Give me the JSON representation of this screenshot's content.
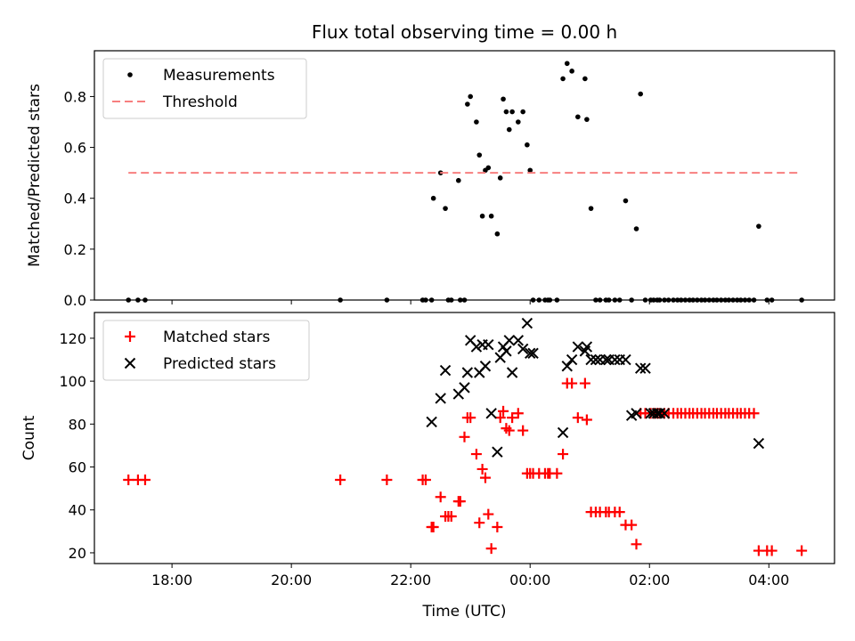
{
  "chart_data": [
    {
      "type": "scatter",
      "title": "Flux total observing time = 0.00 h",
      "xlabel": "",
      "ylabel": "Matched/Predicted stars",
      "ylim": [
        0,
        0.98
      ],
      "yticks": [
        "0.0",
        "0.2",
        "0.4",
        "0.6",
        "0.8"
      ],
      "xlim": [
        16.7,
        29.1
      ],
      "legend_placement": "top-left",
      "series": [
        {
          "name": "Measurements",
          "color": "#000000",
          "marker": "dot",
          "x": [
            17.27,
            17.43,
            17.55,
            20.82,
            21.6,
            22.2,
            22.25,
            22.35,
            22.38,
            22.5,
            22.58,
            22.63,
            22.68,
            22.8,
            22.83,
            22.9,
            22.95,
            23.0,
            23.1,
            23.15,
            23.2,
            23.25,
            23.3,
            23.35,
            23.45,
            23.5,
            23.55,
            23.6,
            23.65,
            23.7,
            23.8,
            23.88,
            23.95,
            24.0,
            24.05,
            24.15,
            24.25,
            24.3,
            24.33,
            24.45,
            24.55,
            24.62,
            24.7,
            24.8,
            24.92,
            24.95,
            25.02,
            25.1,
            25.17,
            25.27,
            25.32,
            25.42,
            25.5,
            25.6,
            25.7,
            25.78,
            25.85,
            25.93,
            26.02,
            26.07,
            26.13,
            26.17,
            26.25,
            26.32,
            26.4,
            26.47,
            26.53,
            26.6,
            26.67,
            26.73,
            26.8,
            26.87,
            26.93,
            27.0,
            27.07,
            27.13,
            27.2,
            27.27,
            27.33,
            27.4,
            27.47,
            27.53,
            27.6,
            27.67,
            27.75,
            27.83,
            27.97,
            28.05,
            28.55
          ],
          "y": [
            0.0,
            0.0,
            0.0,
            0.0,
            0.0,
            0.0,
            0.0,
            0.0,
            0.4,
            0.5,
            0.36,
            0.0,
            0.0,
            0.47,
            0.0,
            0.0,
            0.77,
            0.8,
            0.7,
            0.57,
            0.33,
            0.51,
            0.52,
            0.33,
            0.26,
            0.48,
            0.79,
            0.74,
            0.67,
            0.74,
            0.7,
            0.74,
            0.61,
            0.51,
            0.0,
            0.0,
            0.0,
            0.0,
            0.0,
            0.0,
            0.87,
            0.93,
            0.9,
            0.72,
            0.87,
            0.71,
            0.36,
            0.0,
            0.0,
            0.0,
            0.0,
            0.0,
            0.0,
            0.39,
            0.0,
            0.28,
            0.81,
            0.0,
            0.0,
            0.0,
            0.0,
            0.0,
            0.0,
            0.0,
            0.0,
            0.0,
            0.0,
            0.0,
            0.0,
            0.0,
            0.0,
            0.0,
            0.0,
            0.0,
            0.0,
            0.0,
            0.0,
            0.0,
            0.0,
            0.0,
            0.0,
            0.0,
            0.0,
            0.0,
            0.0,
            0.29,
            0.0,
            0.0,
            0.0
          ]
        },
        {
          "name": "Threshold",
          "color": "#f77f7f",
          "style": "dashed",
          "x": [
            17.27,
            28.55
          ],
          "y": [
            0.5,
            0.5
          ]
        }
      ]
    },
    {
      "type": "scatter",
      "title": "",
      "xlabel": "Time (UTC)",
      "ylabel": "Count",
      "ylim": [
        15,
        132
      ],
      "yticks": [
        "20",
        "40",
        "60",
        "80",
        "100",
        "120"
      ],
      "xlim": [
        16.7,
        29.1
      ],
      "xticks": [
        {
          "value": 18,
          "label": "18:00"
        },
        {
          "value": 20,
          "label": "20:00"
        },
        {
          "value": 22,
          "label": "22:00"
        },
        {
          "value": 24,
          "label": "00:00"
        },
        {
          "value": 26,
          "label": "02:00"
        },
        {
          "value": 28,
          "label": "04:00"
        }
      ],
      "legend_placement": "top-left",
      "series": [
        {
          "name": "Matched stars",
          "color": "#ff0000",
          "marker": "plus",
          "x": [
            17.27,
            17.43,
            17.55,
            20.82,
            21.6,
            22.2,
            22.25,
            22.35,
            22.38,
            22.5,
            22.58,
            22.63,
            22.68,
            22.8,
            22.83,
            22.9,
            22.95,
            23.0,
            23.1,
            23.15,
            23.2,
            23.25,
            23.3,
            23.35,
            23.45,
            23.5,
            23.55,
            23.6,
            23.65,
            23.7,
            23.8,
            23.88,
            23.95,
            24.0,
            24.05,
            24.15,
            24.25,
            24.3,
            24.33,
            24.45,
            24.55,
            24.62,
            24.7,
            24.8,
            24.92,
            24.95,
            25.02,
            25.1,
            25.17,
            25.27,
            25.32,
            25.42,
            25.5,
            25.6,
            25.7,
            25.78,
            25.85,
            25.93,
            26.02,
            26.07,
            26.13,
            26.17,
            26.25,
            26.32,
            26.4,
            26.47,
            26.53,
            26.6,
            26.67,
            26.73,
            26.8,
            26.87,
            26.93,
            27.0,
            27.07,
            27.13,
            27.2,
            27.27,
            27.33,
            27.4,
            27.47,
            27.53,
            27.6,
            27.67,
            27.75,
            27.83,
            27.97,
            28.05,
            28.55
          ],
          "y": [
            54,
            54,
            54,
            54,
            54,
            54,
            54,
            32,
            32,
            46,
            37,
            37,
            37,
            44,
            44,
            74,
            83,
            83,
            66,
            34,
            59,
            55,
            38,
            22,
            32,
            83,
            86,
            78,
            77,
            83,
            85,
            77,
            57,
            57,
            57,
            57,
            57,
            57,
            57,
            57,
            66,
            99,
            99,
            83,
            99,
            82,
            39,
            39,
            39,
            39,
            39,
            39,
            39,
            33,
            33,
            24,
            85,
            85,
            85,
            85,
            85,
            85,
            85,
            85,
            85,
            85,
            85,
            85,
            85,
            85,
            85,
            85,
            85,
            85,
            85,
            85,
            85,
            85,
            85,
            85,
            85,
            85,
            85,
            85,
            85,
            21,
            21,
            21,
            21
          ]
        },
        {
          "name": "Predicted stars",
          "color": "#000000",
          "marker": "x",
          "x": [
            22.35,
            22.5,
            22.58,
            22.8,
            22.9,
            22.95,
            23.0,
            23.1,
            23.15,
            23.2,
            23.25,
            23.3,
            23.35,
            23.45,
            23.5,
            23.55,
            23.6,
            23.65,
            23.7,
            23.8,
            23.88,
            23.95,
            24.0,
            24.05,
            24.55,
            24.62,
            24.7,
            24.8,
            24.92,
            24.95,
            25.02,
            25.1,
            25.17,
            25.27,
            25.32,
            25.42,
            25.5,
            25.6,
            25.7,
            25.78,
            25.85,
            25.93,
            26.02,
            26.07,
            26.13,
            26.17,
            26.25,
            27.83
          ],
          "y": [
            81,
            92,
            105,
            94,
            97,
            104,
            119,
            116,
            104,
            117,
            107,
            117,
            85,
            67,
            111,
            116,
            114,
            119,
            104,
            119,
            115,
            127,
            113,
            113,
            76,
            107,
            110,
            116,
            114,
            116,
            110,
            110,
            110,
            110,
            110,
            110,
            110,
            110,
            84,
            85,
            106,
            106,
            85,
            85,
            85,
            85,
            85,
            71
          ]
        }
      ]
    }
  ]
}
